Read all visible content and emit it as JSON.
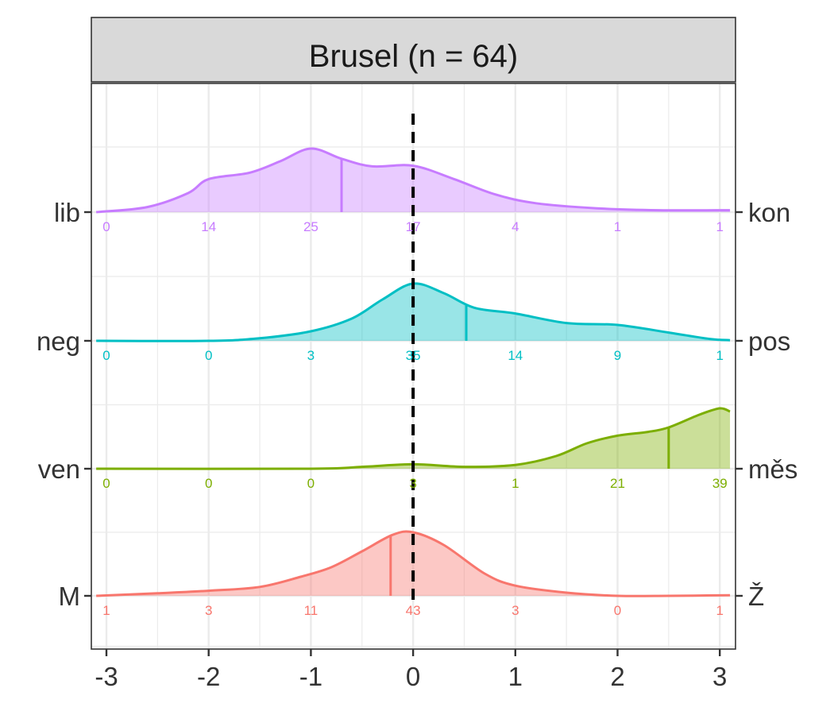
{
  "chart_data": {
    "type": "area",
    "subtype": "ridgeline-density",
    "panel_title": "Brusel (n = 64)",
    "x_ticks": [
      -3,
      -2,
      -1,
      0,
      1,
      2,
      3
    ],
    "x_tick_labels": [
      "-3",
      "-2",
      "-1",
      "0",
      "1",
      "2",
      "3"
    ],
    "xlim": [
      -3.1,
      3.1
    ],
    "reference_line_x": 0,
    "grid": true,
    "legend": "none",
    "rows": [
      {
        "left_label": "lib",
        "right_label": "kon",
        "color": "#C77CFF",
        "median": -0.7,
        "counts": [
          0,
          14,
          25,
          17,
          4,
          1,
          1
        ],
        "count_labels": [
          "0",
          "14",
          "25",
          "17",
          "4",
          "1",
          "1"
        ],
        "density": [
          [
            -3.1,
            0.0
          ],
          [
            -2.6,
            0.08
          ],
          [
            -2.2,
            0.3
          ],
          [
            -2.0,
            0.52
          ],
          [
            -1.6,
            0.62
          ],
          [
            -1.3,
            0.8
          ],
          [
            -1.0,
            1.0
          ],
          [
            -0.7,
            0.84
          ],
          [
            -0.4,
            0.72
          ],
          [
            0.0,
            0.73
          ],
          [
            0.4,
            0.52
          ],
          [
            0.8,
            0.28
          ],
          [
            1.2,
            0.14
          ],
          [
            1.8,
            0.06
          ],
          [
            2.4,
            0.03
          ],
          [
            3.1,
            0.03
          ]
        ]
      },
      {
        "left_label": "neg",
        "right_label": "pos",
        "color": "#00BFC4",
        "median": 0.52,
        "counts": [
          0,
          0,
          3,
          35,
          14,
          9,
          1
        ],
        "count_labels": [
          "0",
          "0",
          "3",
          "35",
          "14",
          "9",
          "1"
        ],
        "density": [
          [
            -3.1,
            0.0
          ],
          [
            -2.0,
            0.0
          ],
          [
            -1.5,
            0.04
          ],
          [
            -1.0,
            0.15
          ],
          [
            -0.6,
            0.35
          ],
          [
            -0.3,
            0.65
          ],
          [
            0.0,
            0.9
          ],
          [
            0.3,
            0.75
          ],
          [
            0.6,
            0.52
          ],
          [
            1.0,
            0.43
          ],
          [
            1.5,
            0.28
          ],
          [
            2.0,
            0.25
          ],
          [
            2.5,
            0.13
          ],
          [
            2.9,
            0.03
          ],
          [
            3.1,
            0.01
          ]
        ]
      },
      {
        "left_label": "ven",
        "right_label": "měs",
        "color": "#7CAE00",
        "median": 2.5,
        "counts": [
          0,
          0,
          0,
          3,
          1,
          21,
          39
        ],
        "count_labels": [
          "0",
          "0",
          "0",
          "3",
          "1",
          "21",
          "39"
        ],
        "density": [
          [
            -3.1,
            0.0
          ],
          [
            -1.0,
            0.0
          ],
          [
            -0.5,
            0.03
          ],
          [
            0.0,
            0.07
          ],
          [
            0.5,
            0.03
          ],
          [
            1.0,
            0.06
          ],
          [
            1.4,
            0.2
          ],
          [
            1.7,
            0.4
          ],
          [
            2.0,
            0.52
          ],
          [
            2.3,
            0.58
          ],
          [
            2.5,
            0.65
          ],
          [
            2.8,
            0.85
          ],
          [
            3.0,
            0.95
          ],
          [
            3.1,
            0.9
          ]
        ]
      },
      {
        "left_label": "M",
        "right_label": "Ž",
        "color": "#F8766D",
        "median": -0.22,
        "counts": [
          1,
          3,
          11,
          43,
          3,
          0,
          1
        ],
        "count_labels": [
          "1",
          "3",
          "11",
          "43",
          "3",
          "0",
          "1"
        ],
        "density": [
          [
            -3.1,
            0.0
          ],
          [
            -2.5,
            0.04
          ],
          [
            -2.0,
            0.08
          ],
          [
            -1.5,
            0.14
          ],
          [
            -1.1,
            0.3
          ],
          [
            -0.8,
            0.45
          ],
          [
            -0.5,
            0.7
          ],
          [
            -0.2,
            0.96
          ],
          [
            0.0,
            1.0
          ],
          [
            0.3,
            0.8
          ],
          [
            0.7,
            0.35
          ],
          [
            1.0,
            0.16
          ],
          [
            1.5,
            0.05
          ],
          [
            2.0,
            0.0
          ],
          [
            2.5,
            0.0
          ],
          [
            3.1,
            0.01
          ]
        ]
      }
    ]
  }
}
